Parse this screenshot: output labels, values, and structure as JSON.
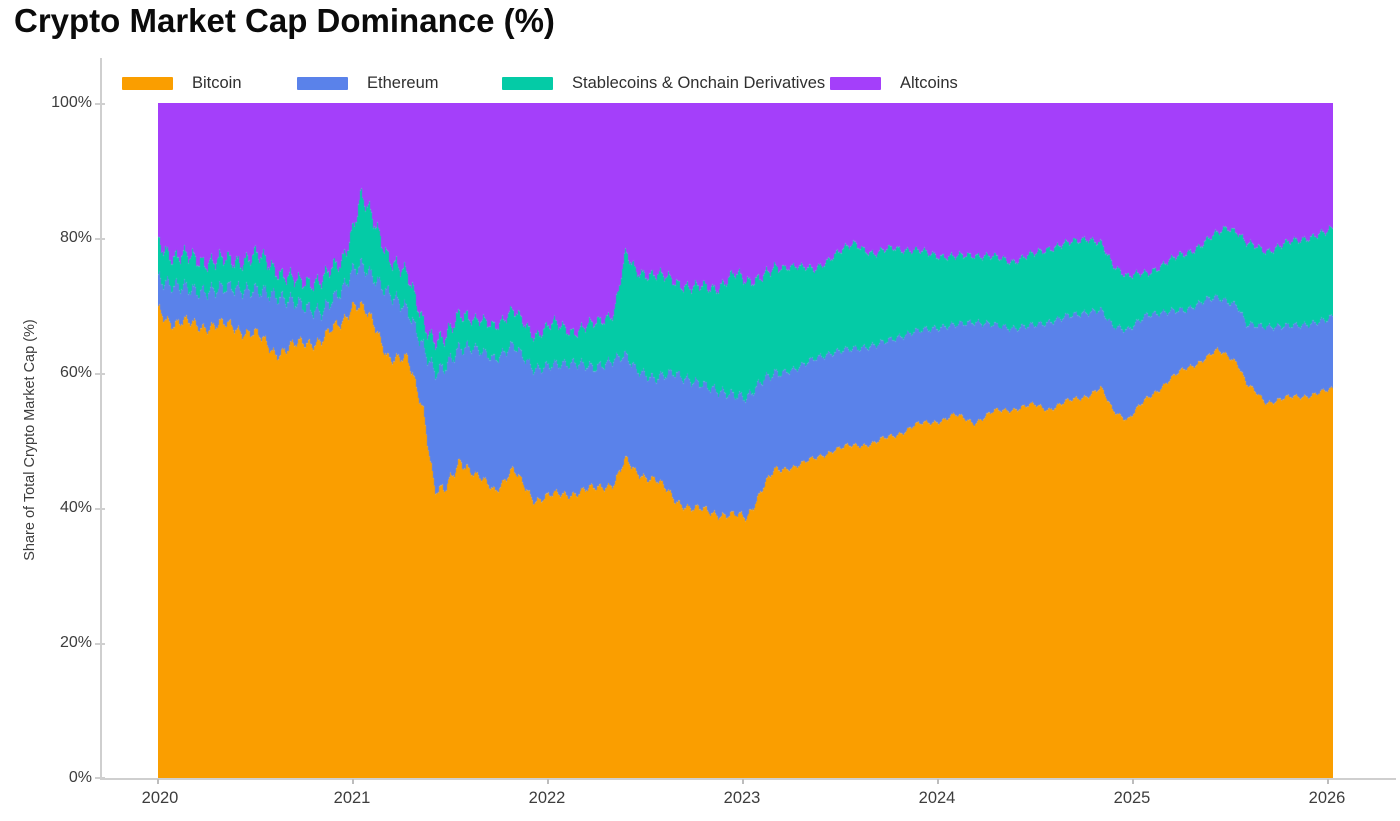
{
  "chart_data": {
    "type": "area",
    "stacked": true,
    "title": "Crypto Market Cap Dominance (%)",
    "ylabel": "Share of Total Crypto Market Cap (%)",
    "xlabel": "",
    "ylim": [
      0,
      100
    ],
    "xlim": [
      2020.0,
      2026.03
    ],
    "grid": false,
    "legend_position": "top-inside",
    "y_tick_labels": [
      "100%",
      "80%",
      "60%",
      "40%",
      "20%",
      "0%"
    ],
    "x_tick_labels": [
      "2020",
      "2021",
      "2022",
      "2023",
      "2024",
      "2025",
      "2026"
    ],
    "x": [
      2020.0,
      2020.08,
      2020.19,
      2020.3,
      2020.38,
      2020.5,
      2020.6,
      2020.72,
      2020.84,
      2020.94,
      2021.0,
      2021.04,
      2021.1,
      2021.18,
      2021.28,
      2021.36,
      2021.42,
      2021.47,
      2021.55,
      2021.62,
      2021.73,
      2021.82,
      2021.93,
      2022.03,
      2022.14,
      2022.24,
      2022.34,
      2022.4,
      2022.45,
      2022.55,
      2022.65,
      2022.75,
      2022.86,
      2022.96,
      2023.02,
      2023.1,
      2023.16,
      2023.27,
      2023.37,
      2023.47,
      2023.58,
      2023.68,
      2023.78,
      2023.88,
      2023.98,
      2024.09,
      2024.19,
      2024.29,
      2024.39,
      2024.5,
      2024.57,
      2024.67,
      2024.77,
      2024.84,
      2024.9,
      2024.98,
      2025.08,
      2025.18,
      2025.28,
      2025.38,
      2025.44,
      2025.49,
      2025.54,
      2025.59,
      2025.69,
      2025.79,
      2025.9,
      2026.0,
      2026.02
    ],
    "series": [
      {
        "name": "Bitcoin",
        "color": "#FA9E00",
        "values": [
          69.5,
          67.3,
          67.2,
          66.9,
          67.0,
          65.6,
          63.1,
          64.1,
          65.1,
          67.2,
          70.5,
          70.0,
          67.2,
          62.7,
          61.6,
          55.0,
          42.5,
          42.2,
          47.5,
          44.8,
          42.8,
          45.5,
          41.3,
          41.8,
          42.3,
          42.8,
          43.8,
          47.0,
          45.3,
          44.3,
          41.3,
          39.8,
          39.3,
          38.8,
          38.5,
          43.0,
          45.2,
          46.3,
          47.2,
          48.7,
          49.2,
          49.7,
          50.7,
          52.2,
          52.7,
          53.7,
          52.7,
          54.2,
          54.7,
          55.2,
          54.7,
          55.7,
          56.7,
          57.7,
          54.5,
          53.2,
          56.2,
          58.7,
          60.7,
          62.2,
          63.2,
          62.7,
          61.7,
          58.2,
          55.7,
          56.2,
          56.7,
          57.2,
          57.5
        ]
      },
      {
        "name": "Ethereum",
        "color": "#5A82EA",
        "values": [
          4.5,
          5.7,
          4.9,
          5.4,
          5.7,
          6.5,
          8.5,
          6.0,
          4.0,
          4.9,
          5.0,
          6.0,
          6.9,
          9.4,
          7.5,
          9.0,
          17.5,
          18.4,
          16.5,
          18.8,
          19.3,
          18.6,
          19.3,
          19.3,
          19.3,
          17.8,
          18.3,
          15.5,
          15.3,
          14.8,
          18.8,
          18.8,
          18.3,
          17.8,
          17.8,
          16.0,
          14.5,
          14.3,
          14.9,
          14.4,
          14.4,
          14.4,
          14.4,
          13.9,
          13.9,
          13.4,
          14.9,
          12.9,
          11.9,
          11.9,
          12.8,
          12.7,
          12.3,
          11.6,
          12.5,
          13.2,
          12.4,
          10.4,
          8.6,
          8.7,
          7.9,
          7.9,
          8.4,
          8.9,
          11.2,
          10.7,
          10.5,
          10.6,
          10.7
        ]
      },
      {
        "name": "Stablecoins & Onchain Derivatives",
        "color": "#04CBA6",
        "values": [
          5.5,
          4.2,
          4.8,
          4.2,
          3.9,
          5.2,
          4.0,
          3.0,
          5.0,
          4.0,
          6.5,
          10.3,
          8.4,
          5.5,
          4.9,
          4.0,
          4.5,
          4.0,
          5.5,
          4.0,
          5.1,
          5.0,
          5.1,
          6.1,
          4.6,
          6.6,
          7.0,
          15.0,
          14.5,
          15.5,
          13.5,
          14.0,
          15.0,
          18.0,
          17.2,
          15.5,
          15.4,
          15.5,
          13.0,
          14.5,
          15.5,
          13.5,
          13.5,
          12.0,
          11.0,
          10.0,
          10.0,
          10.0,
          10.0,
          10.5,
          11.0,
          10.7,
          11.1,
          9.8,
          9.0,
          8.1,
          6.0,
          7.5,
          8.3,
          8.7,
          9.5,
          11.0,
          11.0,
          12.0,
          11.2,
          12.2,
          12.9,
          12.9,
          13.0
        ]
      },
      {
        "name": "Altcoins",
        "color": "#A43FFA",
        "values": [
          20.5,
          22.8,
          23.1,
          23.5,
          23.4,
          22.7,
          24.4,
          26.9,
          25.9,
          23.9,
          18.0,
          13.7,
          17.5,
          22.4,
          26.0,
          32.0,
          35.5,
          35.4,
          30.5,
          32.4,
          32.8,
          30.9,
          34.3,
          32.8,
          33.8,
          32.8,
          30.9,
          22.5,
          24.9,
          25.4,
          26.4,
          27.4,
          27.4,
          25.4,
          26.5,
          25.5,
          24.9,
          23.9,
          24.9,
          22.4,
          20.9,
          22.4,
          21.4,
          21.9,
          22.4,
          22.9,
          22.4,
          22.9,
          23.4,
          22.4,
          21.5,
          20.9,
          19.9,
          20.9,
          24.0,
          25.5,
          25.4,
          23.4,
          22.4,
          20.4,
          19.4,
          18.4,
          18.9,
          20.9,
          21.9,
          20.9,
          19.9,
          19.3,
          18.8
        ]
      }
    ]
  },
  "style": {
    "axis_line_color": "#cfcfcf",
    "tick_label_color": "#3d3d3d",
    "title_color": "#0b0b0b",
    "background": "#ffffff"
  }
}
